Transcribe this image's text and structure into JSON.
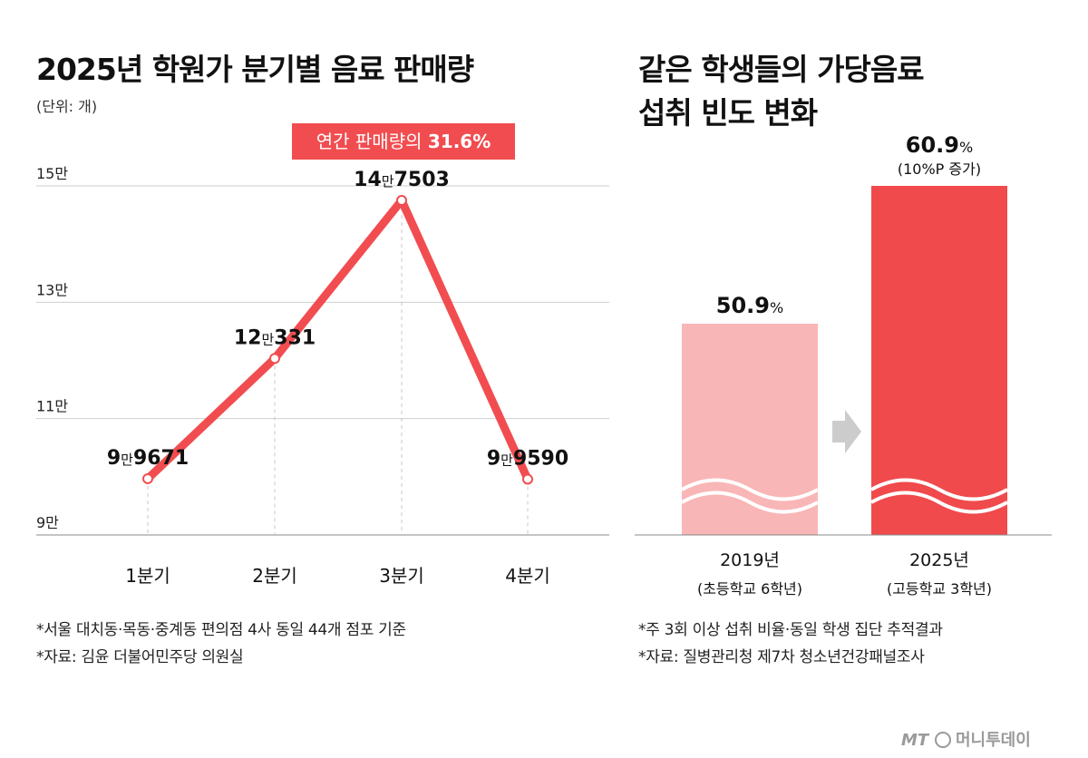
{
  "left_panel": {
    "title": "2025년 학원가 분기별 음료 판매량",
    "unit": "(단위: 개)",
    "callout": {
      "prefix": "연간 판매량의 ",
      "value": "31.6%"
    },
    "notes": [
      "*서울 대치동·목동·중계동 편의점 4사 동일 44개 점포 기준",
      "*자료: 김윤 더불어민주당 의원실"
    ]
  },
  "right_panel": {
    "title_lines": [
      "같은 학생들의 가당음료",
      "섭취 빈도 변화"
    ],
    "notes": [
      "*주 3회 이상 섭취 비율·동일 학생 집단 추적결과",
      "*자료: 질병관리청 제7차 청소년건강패널조사"
    ]
  },
  "logo": {
    "mark": "MT",
    "text": "머니투데이"
  },
  "colors": {
    "accent": "#f14d50",
    "bar_light": "#f9b6b6",
    "bar_dark": "#f04a4c",
    "arrow": "#cccccc",
    "grid": "#cfcfcf"
  },
  "chart_data": [
    {
      "type": "line",
      "title": "2025년 학원가 분기별 음료 판매량",
      "ylabel": "(단위: 개)",
      "categories": [
        "1분기",
        "2분기",
        "3분기",
        "4분기"
      ],
      "values": [
        99671,
        120331,
        147503,
        99590
      ],
      "labels": [
        {
          "num": "9",
          "unit": "만",
          "rest": "9671"
        },
        {
          "num": "12",
          "unit": "만",
          "rest": "331"
        },
        {
          "num": "14",
          "unit": "만",
          "rest": "7503"
        },
        {
          "num": "9",
          "unit": "만",
          "rest": "9590"
        }
      ],
      "ylim": [
        90000,
        150000
      ],
      "yticks": [
        90000,
        110000,
        130000,
        150000
      ],
      "ytick_labels": [
        "9만",
        "11만",
        "13만",
        "15만"
      ],
      "grid": true
    },
    {
      "type": "bar",
      "title": "같은 학생들의 가당음료 섭취 빈도 변화",
      "categories": [
        "2019년",
        "2025년"
      ],
      "subcategories": [
        "(초등학교 6학년)",
        "(고등학교 3학년)"
      ],
      "values": [
        50.9,
        60.9
      ],
      "value_labels": [
        {
          "num": "50.9",
          "unit": "%"
        },
        {
          "num": "60.9",
          "unit": "%"
        }
      ],
      "annotation": "(10%P 증가)",
      "axis_break": true
    }
  ]
}
